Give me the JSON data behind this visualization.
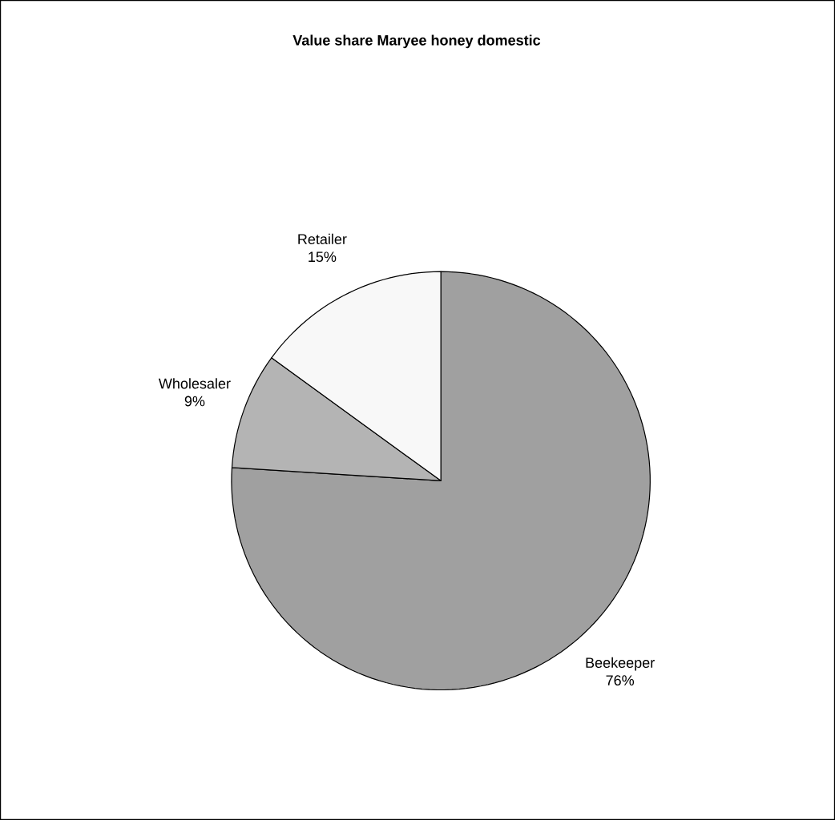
{
  "chart_data": {
    "type": "pie",
    "title": "Value share Maryee honey domestic",
    "categories": [
      "Beekeeper",
      "Wholesaler",
      "Retailer"
    ],
    "values": [
      76,
      9,
      15
    ],
    "colors": [
      "#a0a0a0",
      "#b4b4b4",
      "#f8f8f8"
    ],
    "value_labels": [
      "76%",
      "9%",
      "15%"
    ]
  }
}
